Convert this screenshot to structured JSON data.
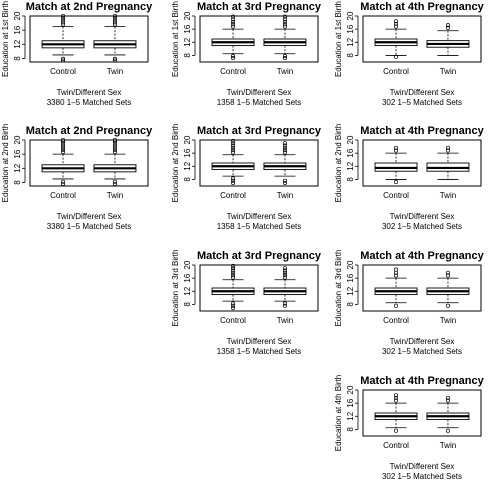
{
  "chart_data": [
    {
      "id": "p-2-1",
      "type": "box",
      "title": "Match at 2nd Pregnancy",
      "ylabel": "Education at 1st Birth",
      "ylim": [
        7,
        20
      ],
      "yticks": [
        8,
        12,
        16,
        20
      ],
      "ytick_labels": [
        "8",
        "12",
        "16",
        "20"
      ],
      "categories": [
        "Control",
        "Twin"
      ],
      "subtitle": [
        "Twin/Different Sex",
        "3380 1–5 Matched Sets"
      ],
      "boxes": [
        {
          "q1": 11,
          "median": 12,
          "q3": 13,
          "lw": 9,
          "uw": 17,
          "outliers": [
            17.6,
            18.2,
            18.8,
            19.4,
            20,
            7.4,
            7.9
          ]
        },
        {
          "q1": 11,
          "median": 12,
          "q3": 13,
          "lw": 9,
          "uw": 17,
          "outliers": [
            17.6,
            18.2,
            18.8,
            19.4,
            20,
            7.4,
            7.9
          ]
        }
      ]
    },
    {
      "id": "p-3-1",
      "type": "box",
      "title": "Match at 3rd Pregnancy",
      "ylabel": "Education at 1st Birth",
      "ylim": [
        6,
        20
      ],
      "yticks": [
        8,
        12,
        16,
        20
      ],
      "ytick_labels": [
        "8",
        "12",
        "16",
        "20"
      ],
      "categories": [
        "Control",
        "Twin"
      ],
      "subtitle": [
        "Twin/Different Sex",
        "1358 1–5 Matched Sets"
      ],
      "boxes": [
        {
          "q1": 11,
          "median": 12,
          "q3": 13,
          "lw": 8.5,
          "uw": 16,
          "outliers": [
            16.8,
            17.5,
            18.2,
            19,
            19.8,
            7.8,
            7.2
          ]
        },
        {
          "q1": 11,
          "median": 12,
          "q3": 13,
          "lw": 8.5,
          "uw": 16,
          "outliers": [
            16.8,
            17.5,
            18.2,
            19,
            19.8,
            7.8,
            7.2
          ]
        }
      ]
    },
    {
      "id": "p-4-1",
      "type": "box",
      "title": "Match at 4th Pregnancy",
      "ylabel": "Education at 1st Birth",
      "ylim": [
        6,
        20
      ],
      "yticks": [
        8,
        12,
        16,
        20
      ],
      "ytick_labels": [
        "8",
        "12",
        "16",
        "20"
      ],
      "categories": [
        "Control",
        "Twin"
      ],
      "subtitle": [
        "Twin/Different Sex",
        "302 1–5 Matched Sets"
      ],
      "boxes": [
        {
          "q1": 11,
          "median": 12,
          "q3": 13,
          "lw": 8,
          "uw": 16,
          "outliers": [
            16.8,
            17.6,
            18.4,
            7.6
          ]
        },
        {
          "q1": 10.5,
          "median": 11.5,
          "q3": 12.5,
          "lw": 8,
          "uw": 15.5,
          "outliers": [
            16.4,
            17.2
          ]
        }
      ]
    },
    {
      "id": "p-2-2",
      "type": "box",
      "title": "Match at 2nd Pregnancy",
      "ylabel": "Education at 2nd Birth",
      "ylim": [
        7,
        20
      ],
      "yticks": [
        8,
        12,
        16,
        20
      ],
      "ytick_labels": [
        "8",
        "12",
        "16",
        "20"
      ],
      "categories": [
        "Control",
        "Twin"
      ],
      "subtitle": [
        "Twin/Different Sex",
        "3380 1–5 Matched Sets"
      ],
      "boxes": [
        {
          "q1": 11,
          "median": 12,
          "q3": 13,
          "lw": 9,
          "uw": 16,
          "outliers": [
            16.6,
            17.2,
            17.8,
            18.4,
            19,
            19.6,
            20,
            7.6,
            8.2
          ]
        },
        {
          "q1": 11,
          "median": 12,
          "q3": 13,
          "lw": 9,
          "uw": 16,
          "outliers": [
            16.6,
            17.2,
            17.8,
            18.4,
            19,
            19.6,
            20,
            7.6,
            8.2
          ]
        }
      ]
    },
    {
      "id": "p-3-2",
      "type": "box",
      "title": "Match at 3rd Pregnancy",
      "ylabel": "Education at 2nd Birth",
      "ylim": [
        6,
        20
      ],
      "yticks": [
        8,
        12,
        16,
        20
      ],
      "ytick_labels": [
        "8",
        "12",
        "16",
        "20"
      ],
      "categories": [
        "Control",
        "Twin"
      ],
      "subtitle": [
        "Twin/Different Sex",
        "1358 1–5 Matched Sets"
      ],
      "boxes": [
        {
          "q1": 11,
          "median": 12,
          "q3": 13,
          "lw": 9,
          "uw": 15.5,
          "outliers": [
            16.2,
            16.9,
            17.6,
            18.3,
            19,
            19.7,
            8.3,
            7.6,
            6.9
          ]
        },
        {
          "q1": 11,
          "median": 12,
          "q3": 13,
          "lw": 9,
          "uw": 15.5,
          "outliers": [
            16.2,
            16.9,
            17.6,
            18.3,
            19,
            7.6,
            6.9
          ]
        }
      ]
    },
    {
      "id": "p-4-2",
      "type": "box",
      "title": "Match at 4th Pregnancy",
      "ylabel": "Education at 2nd Birth",
      "ylim": [
        6,
        20
      ],
      "yticks": [
        8,
        12,
        16,
        20
      ],
      "ytick_labels": [
        "8",
        "12",
        "16",
        "20"
      ],
      "categories": [
        "Control",
        "Twin"
      ],
      "subtitle": [
        "Twin/Different Sex",
        "302 1–5 Matched Sets"
      ],
      "boxes": [
        {
          "q1": 10.5,
          "median": 11.5,
          "q3": 13,
          "lw": 8,
          "uw": 16,
          "outliers": [
            16.8,
            17.6,
            7.2
          ]
        },
        {
          "q1": 10.5,
          "median": 11.5,
          "q3": 13,
          "lw": 8,
          "uw": 16,
          "outliers": [
            16.8,
            17.6
          ]
        }
      ]
    },
    {
      "id": "p-3-3",
      "type": "box",
      "title": "Match at 3rd Pregnancy",
      "ylabel": "Education at 3rd Birth",
      "ylim": [
        6,
        20
      ],
      "yticks": [
        8,
        12,
        16,
        20
      ],
      "ytick_labels": [
        "8",
        "12",
        "16",
        "20"
      ],
      "categories": [
        "Control",
        "Twin"
      ],
      "subtitle": [
        "Twin/Different Sex",
        "1358 1–5 Matched Sets"
      ],
      "boxes": [
        {
          "q1": 11,
          "median": 12,
          "q3": 13,
          "lw": 9,
          "uw": 15.5,
          "outliers": [
            16.2,
            16.9,
            17.6,
            18.3,
            19,
            19.7,
            8.3,
            7.6,
            6.9
          ]
        },
        {
          "q1": 11,
          "median": 12,
          "q3": 13,
          "lw": 9,
          "uw": 15.5,
          "outliers": [
            16.2,
            16.9,
            17.6,
            18.3,
            19,
            8.3,
            7.6
          ]
        }
      ]
    },
    {
      "id": "p-4-3",
      "type": "box",
      "title": "Match at 4th Pregnancy",
      "ylabel": "Education at 3rd Birth",
      "ylim": [
        6,
        20
      ],
      "yticks": [
        8,
        12,
        16,
        20
      ],
      "ytick_labels": [
        "8",
        "12",
        "16",
        "20"
      ],
      "categories": [
        "Control",
        "Twin"
      ],
      "subtitle": [
        "Twin/Different Sex",
        "302 1–5 Matched Sets"
      ],
      "boxes": [
        {
          "q1": 11,
          "median": 12,
          "q3": 13,
          "lw": 8.5,
          "uw": 16,
          "outliers": [
            16.8,
            17.6,
            18.6,
            7.6
          ]
        },
        {
          "q1": 11,
          "median": 12,
          "q3": 13,
          "lw": 8.5,
          "uw": 16,
          "outliers": [
            16.8,
            17.6,
            7.6
          ]
        }
      ]
    },
    {
      "id": "p-4-4",
      "type": "box",
      "title": "Match at 4th Pregnancy",
      "ylabel": "Education at 4th Birth",
      "ylim": [
        6,
        20
      ],
      "yticks": [
        8,
        12,
        16,
        20
      ],
      "ytick_labels": [
        "8",
        "12",
        "16",
        "20"
      ],
      "categories": [
        "Control",
        "Twin"
      ],
      "subtitle": [
        "Twin/Different Sex",
        "302 1–5 Matched Sets"
      ],
      "boxes": [
        {
          "q1": 11,
          "median": 12,
          "q3": 13,
          "lw": 8.5,
          "uw": 16,
          "outliers": [
            16.8,
            17.6,
            18.4,
            7.6
          ]
        },
        {
          "q1": 11,
          "median": 12,
          "q3": 13,
          "lw": 8.5,
          "uw": 16,
          "outliers": [
            16.8,
            17.6,
            7.6
          ]
        }
      ]
    }
  ]
}
